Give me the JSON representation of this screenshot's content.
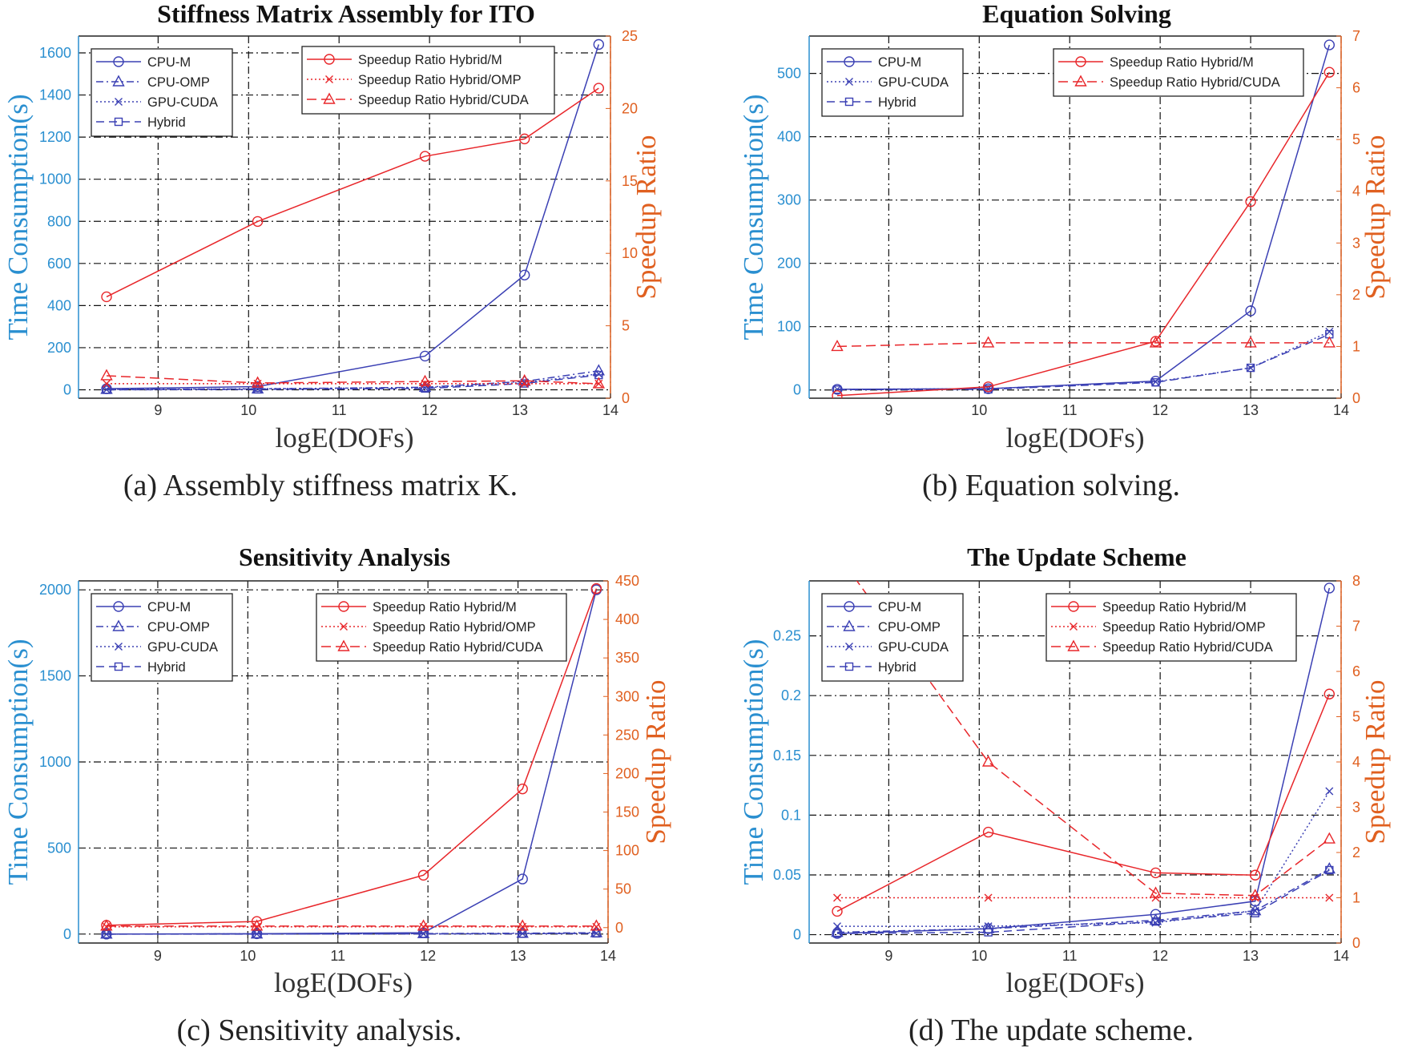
{
  "colors": {
    "time_series": "#3b40b4",
    "speedup_series": "#e8262a",
    "left_axis": "#2a8fd0",
    "right_axis": "#e06020",
    "grid": "#111111"
  },
  "chart_data": [
    {
      "type": "line",
      "title": "Stiffness Matrix Assembly for ITO",
      "xlabel": "logE(DOFs)",
      "ylabel": "Time Consumption(s)",
      "y2label": "Speedup Ratio",
      "caption": "(a) Assembly stiffness matrix K.",
      "grid": true,
      "legend": [
        "top-left",
        "top-right"
      ],
      "x": [
        8.43,
        10.1,
        11.95,
        13.05,
        13.87
      ],
      "xlim": [
        8.12,
        14.0
      ],
      "xticks": [
        9,
        10,
        11,
        12,
        13,
        14
      ],
      "ylim": [
        -40,
        1680
      ],
      "yticks": [
        0,
        200,
        400,
        600,
        800,
        1000,
        1200,
        1400,
        1600
      ],
      "y2lim": [
        0,
        25
      ],
      "y2ticks": [
        0,
        5,
        10,
        15,
        20,
        25
      ],
      "series": [
        {
          "name": "CPU-M",
          "axis": "left",
          "values": [
            5,
            15,
            160,
            545,
            1640
          ]
        },
        {
          "name": "CPU-OMP",
          "axis": "left",
          "values": [
            2,
            4,
            12,
            40,
            90
          ]
        },
        {
          "name": "GPU-CUDA",
          "axis": "left",
          "values": [
            1,
            5,
            10,
            35,
            75
          ]
        },
        {
          "name": "Hybrid",
          "axis": "left",
          "values": [
            0,
            2,
            6,
            30,
            70
          ]
        },
        {
          "name": "Speedup Ratio Hybrid/M",
          "axis": "right",
          "values": [
            7.0,
            12.2,
            16.7,
            17.9,
            21.4
          ]
        },
        {
          "name": "Speedup Ratio Hybrid/OMP",
          "axis": "right",
          "values": [
            1.0,
            1.0,
            1.0,
            1.0,
            1.0
          ]
        },
        {
          "name": "Speedup Ratio Hybrid/CUDA",
          "axis": "right",
          "values": [
            1.55,
            1.05,
            1.15,
            1.2,
            1.0
          ]
        }
      ]
    },
    {
      "type": "line",
      "title": "Equation Solving",
      "xlabel": "logE(DOFs)",
      "ylabel": "Time Consumption(s)",
      "y2label": "Speedup Ratio",
      "caption": "(b) Equation solving.",
      "grid": true,
      "legend": [
        "top-left",
        "top-right"
      ],
      "x": [
        8.43,
        10.1,
        11.95,
        13.0,
        13.87
      ],
      "xlim": [
        8.12,
        14.0
      ],
      "xticks": [
        9,
        10,
        11,
        12,
        13,
        14
      ],
      "ylim": [
        -13,
        559
      ],
      "yticks": [
        0,
        100,
        200,
        300,
        400,
        500
      ],
      "y2lim": [
        0,
        7
      ],
      "y2ticks": [
        0,
        1,
        2,
        3,
        4,
        5,
        6,
        7
      ],
      "series": [
        {
          "name": "CPU-M",
          "axis": "left",
          "values": [
            1,
            2,
            14,
            125,
            545
          ]
        },
        {
          "name": "GPU-CUDA",
          "axis": "left",
          "values": [
            1,
            2,
            13,
            35,
            92
          ]
        },
        {
          "name": "Hybrid",
          "axis": "left",
          "values": [
            0.5,
            1,
            12,
            35,
            88
          ]
        },
        {
          "name": "Speedup Ratio Hybrid/M",
          "axis": "right",
          "values": [
            0.05,
            0.22,
            1.1,
            3.8,
            6.3
          ]
        },
        {
          "name": "Speedup Ratio Hybrid/CUDA",
          "axis": "right",
          "values": [
            1.0,
            1.07,
            1.07,
            1.07,
            1.07
          ]
        }
      ]
    },
    {
      "type": "line",
      "title": "Sensitivity Analysis",
      "xlabel": "logE(DOFs)",
      "ylabel": "Time Consumption(s)",
      "y2label": "Speedup Ratio",
      "caption": "(c) Sensitivity analysis.",
      "grid": true,
      "legend": [
        "top-left",
        "top-right"
      ],
      "x": [
        8.43,
        10.1,
        11.95,
        13.05,
        13.87
      ],
      "xlim": [
        8.12,
        14.0
      ],
      "xticks": [
        9,
        10,
        11,
        12,
        13,
        14
      ],
      "ylim": [
        -52,
        2052
      ],
      "yticks": [
        0,
        500,
        1000,
        1500,
        2000
      ],
      "y2lim": [
        -20,
        450
      ],
      "y2ticks": [
        0,
        50,
        100,
        150,
        200,
        250,
        300,
        350,
        400,
        450
      ],
      "series": [
        {
          "name": "CPU-M",
          "axis": "left",
          "values": [
            0,
            2,
            8,
            320,
            2000
          ]
        },
        {
          "name": "CPU-OMP",
          "axis": "left",
          "values": [
            0,
            1,
            3,
            5,
            8
          ]
        },
        {
          "name": "GPU-CUDA",
          "axis": "left",
          "values": [
            0,
            1,
            2,
            3,
            5
          ]
        },
        {
          "name": "Hybrid",
          "axis": "left",
          "values": [
            0,
            0,
            1,
            2,
            4
          ]
        },
        {
          "name": "Speedup Ratio Hybrid/M",
          "axis": "right",
          "values": [
            3,
            8,
            68,
            180,
            440
          ]
        },
        {
          "name": "Speedup Ratio Hybrid/OMP",
          "axis": "right",
          "values": [
            1,
            1,
            1,
            1,
            1
          ]
        },
        {
          "name": "Speedup Ratio Hybrid/CUDA",
          "axis": "right",
          "values": [
            2,
            2,
            2,
            2,
            2
          ]
        }
      ]
    },
    {
      "type": "line",
      "title": "The Update Scheme",
      "xlabel": "logE(DOFs)",
      "ylabel": "Time Consumption(s)",
      "y2label": "Speedup Ratio",
      "caption": "(d) The update scheme.",
      "grid": true,
      "legend": [
        "top-left",
        "top-right"
      ],
      "x": [
        8.43,
        10.1,
        11.95,
        13.05,
        13.87
      ],
      "xlim": [
        8.12,
        14.0
      ],
      "xticks": [
        9,
        10,
        11,
        12,
        13,
        14
      ],
      "ylim": [
        -0.007,
        0.296
      ],
      "yticks": [
        0,
        0.05,
        0.1,
        0.15,
        0.2,
        0.25
      ],
      "y2lim": [
        0,
        8
      ],
      "y2ticks": [
        0,
        1,
        2,
        3,
        4,
        5,
        6,
        7,
        8
      ],
      "series": [
        {
          "name": "CPU-M",
          "axis": "left",
          "values": [
            0.001,
            0.005,
            0.017,
            0.028,
            0.29
          ]
        },
        {
          "name": "CPU-OMP",
          "axis": "left",
          "values": [
            0.002,
            0.005,
            0.012,
            0.02,
            0.055
          ]
        },
        {
          "name": "GPU-CUDA",
          "axis": "left",
          "values": [
            0.007,
            0.007,
            0.01,
            0.02,
            0.12
          ]
        },
        {
          "name": "Hybrid",
          "axis": "left",
          "values": [
            0.001,
            0.002,
            0.011,
            0.018,
            0.054
          ]
        },
        {
          "name": "Speedup Ratio Hybrid/M",
          "axis": "right",
          "values": [
            0.7,
            2.45,
            1.55,
            1.5,
            5.5
          ]
        },
        {
          "name": "Speedup Ratio Hybrid/OMP",
          "axis": "right",
          "values": [
            1,
            1,
            1,
            1,
            1
          ]
        },
        {
          "name": "Speedup Ratio Hybrid/CUDA",
          "axis": "right",
          "values": [
            8.6,
            4.0,
            1.1,
            1.05,
            2.3
          ]
        }
      ]
    }
  ]
}
